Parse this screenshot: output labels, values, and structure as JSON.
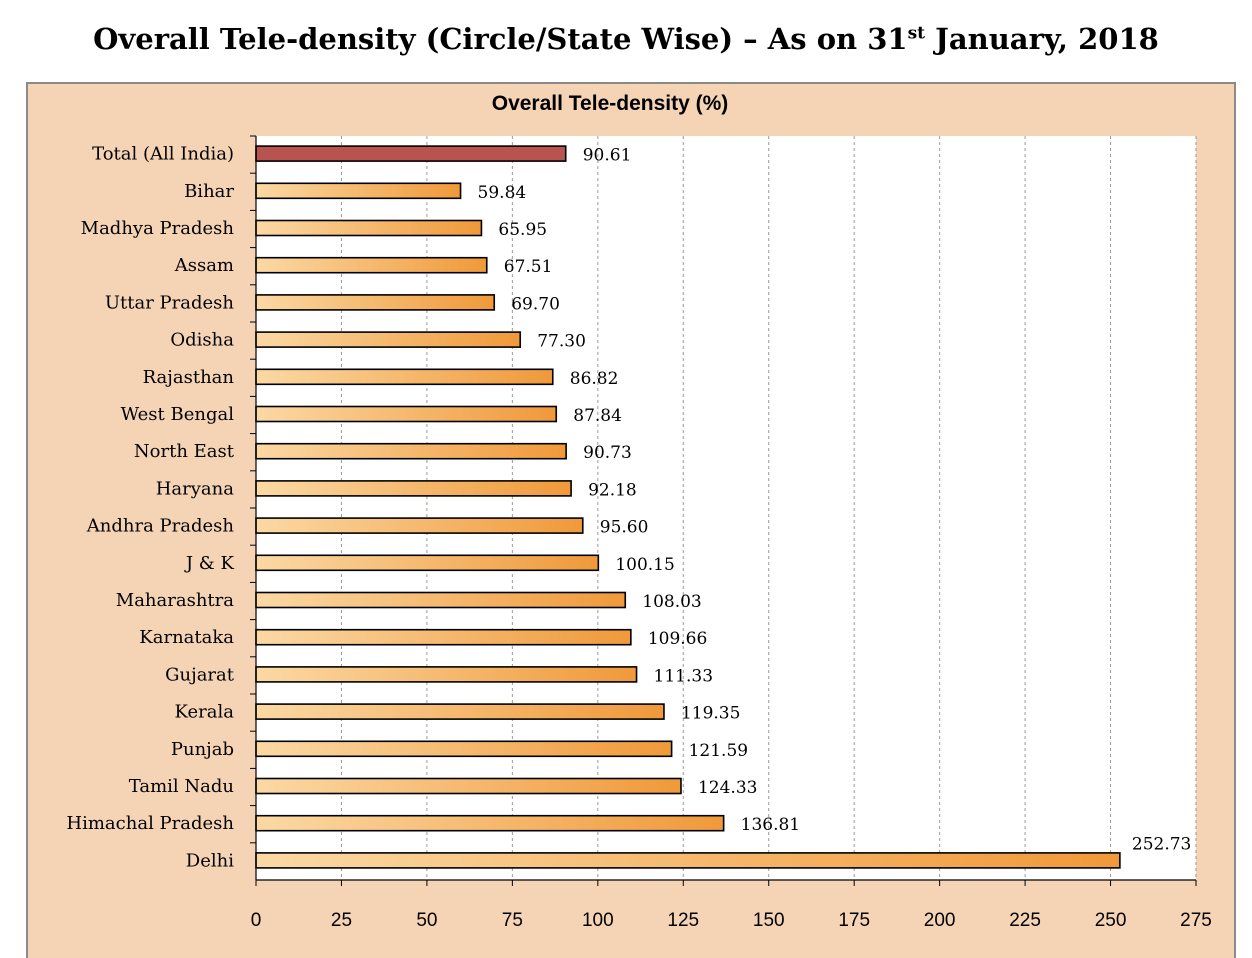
{
  "page": {
    "title_pre": "Overall Tele-density (Circle/State Wise) – As on 31",
    "title_sup": "st",
    "title_post": " January, 2018"
  },
  "chart_data": {
    "type": "bar",
    "orientation": "horizontal",
    "title": "Overall Tele-density (%)",
    "xlabel": "",
    "ylabel": "",
    "xlim": [
      0,
      275
    ],
    "xticks": [
      0,
      25,
      50,
      75,
      100,
      125,
      150,
      175,
      200,
      225,
      250,
      275
    ],
    "grid": "vertical dashed",
    "categories": [
      "Total (All India)",
      "Bihar",
      "Madhya Pradesh",
      "Assam",
      "Uttar Pradesh",
      "Odisha",
      "Rajasthan",
      "West Bengal",
      "North East",
      "Haryana",
      "Andhra Pradesh",
      "J & K",
      "Maharashtra",
      "Karnataka",
      "Gujarat",
      "Kerala",
      "Punjab",
      "Tamil Nadu",
      "Himachal Pradesh",
      "Delhi"
    ],
    "values": [
      90.61,
      59.84,
      65.95,
      67.51,
      69.7,
      77.3,
      86.82,
      87.84,
      90.73,
      92.18,
      95.6,
      100.15,
      108.03,
      109.66,
      111.33,
      119.35,
      121.59,
      124.33,
      136.81,
      252.73
    ],
    "value_labels": [
      "90.61",
      "59.84",
      "65.95",
      "67.51",
      "69.70",
      "77.30",
      "86.82",
      "87.84",
      "90.73",
      "92.18",
      "95.60",
      "100.15",
      "108.03",
      "109.66",
      "111.33",
      "119.35",
      "121.59",
      "124.33",
      "136.81",
      "252.73"
    ],
    "colors": {
      "highlight_bar": "#b85450",
      "bar_gradient_start": "#fbd9a4",
      "bar_gradient_end": "#f0993a",
      "plot_background": "#ffffff",
      "frame_background": "#f5d4b6"
    }
  }
}
